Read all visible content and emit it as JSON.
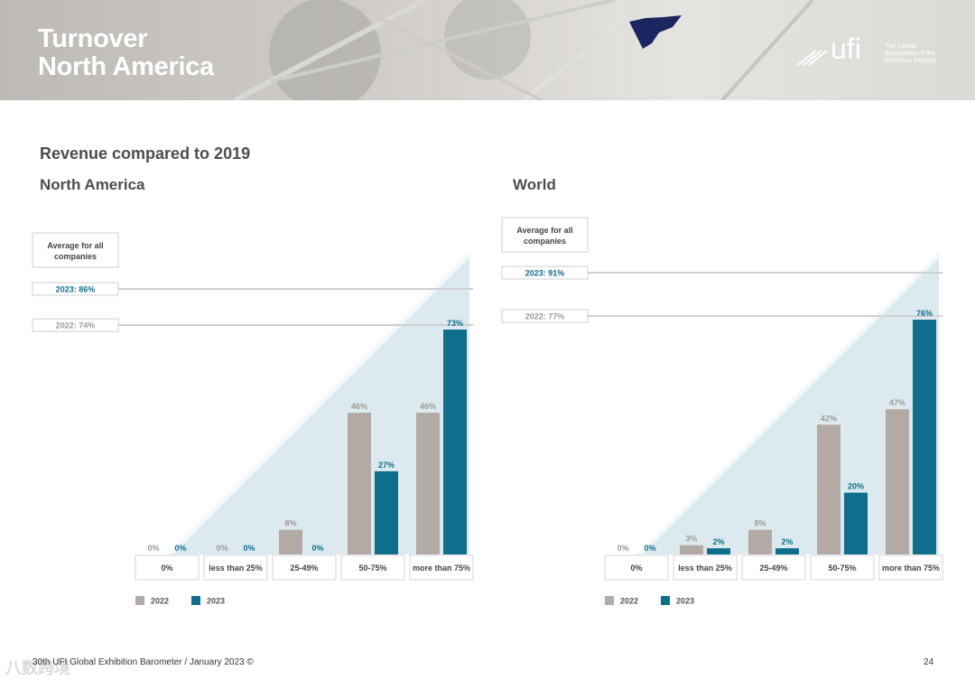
{
  "header": {
    "title_line1": "Turnover",
    "title_line2": "North America",
    "logo_text": "ufi",
    "logo_tagline": [
      "The Global",
      "Association of the",
      "Exhibition Industry"
    ]
  },
  "section_title": "Revenue compared to 2019",
  "footer": {
    "text": "30th UFI Global Exhibition Barometer / January 2023 ©",
    "page_number": "24",
    "watermark": "八数跨境"
  },
  "colors": {
    "series_2022": "#b3aaa5",
    "series_2023": "#0e6e8c",
    "triangle_fill": "#dceaf0",
    "label_2022": "#a09894",
    "label_2023": "#0e6e8c"
  },
  "chart_data": [
    {
      "type": "bar",
      "title": "North America",
      "categories": [
        "0%",
        "less than 25%",
        "25-49%",
        "50-75%",
        "more than 75%"
      ],
      "series": [
        {
          "name": "2022",
          "values": [
            0,
            0,
            8,
            46,
            46
          ],
          "labels": [
            "0%",
            "0%",
            "8%",
            "46%",
            "46%"
          ]
        },
        {
          "name": "2023",
          "values": [
            0,
            0,
            0,
            27,
            73
          ],
          "labels": [
            "0%",
            "0%",
            "0%",
            "27%",
            "73%"
          ]
        }
      ],
      "ylim": [
        0,
        73
      ],
      "average_box": "Average for all companies",
      "averages": [
        {
          "label": "2023: 86%",
          "series": "2023",
          "value": 86
        },
        {
          "label": "2022: 74%",
          "series": "2022",
          "value": 74
        }
      ],
      "legend": "bottom-left"
    },
    {
      "type": "bar",
      "title": "World",
      "categories": [
        "0%",
        "less than 25%",
        "25-49%",
        "50-75%",
        "more than 75%"
      ],
      "series": [
        {
          "name": "2022",
          "values": [
            0,
            3,
            8,
            42,
            47
          ],
          "labels": [
            "0%",
            "3%",
            "8%",
            "42%",
            "47%"
          ]
        },
        {
          "name": "2023",
          "values": [
            0,
            2,
            2,
            20,
            76
          ],
          "labels": [
            "0%",
            "2%",
            "2%",
            "20%",
            "76%"
          ]
        }
      ],
      "ylim": [
        0,
        76
      ],
      "average_box": "Average for all companies",
      "averages": [
        {
          "label": "2023: 91%",
          "series": "2023",
          "value": 91
        },
        {
          "label": "2022: 77%",
          "series": "2022",
          "value": 77
        }
      ],
      "legend": "bottom-left"
    }
  ]
}
